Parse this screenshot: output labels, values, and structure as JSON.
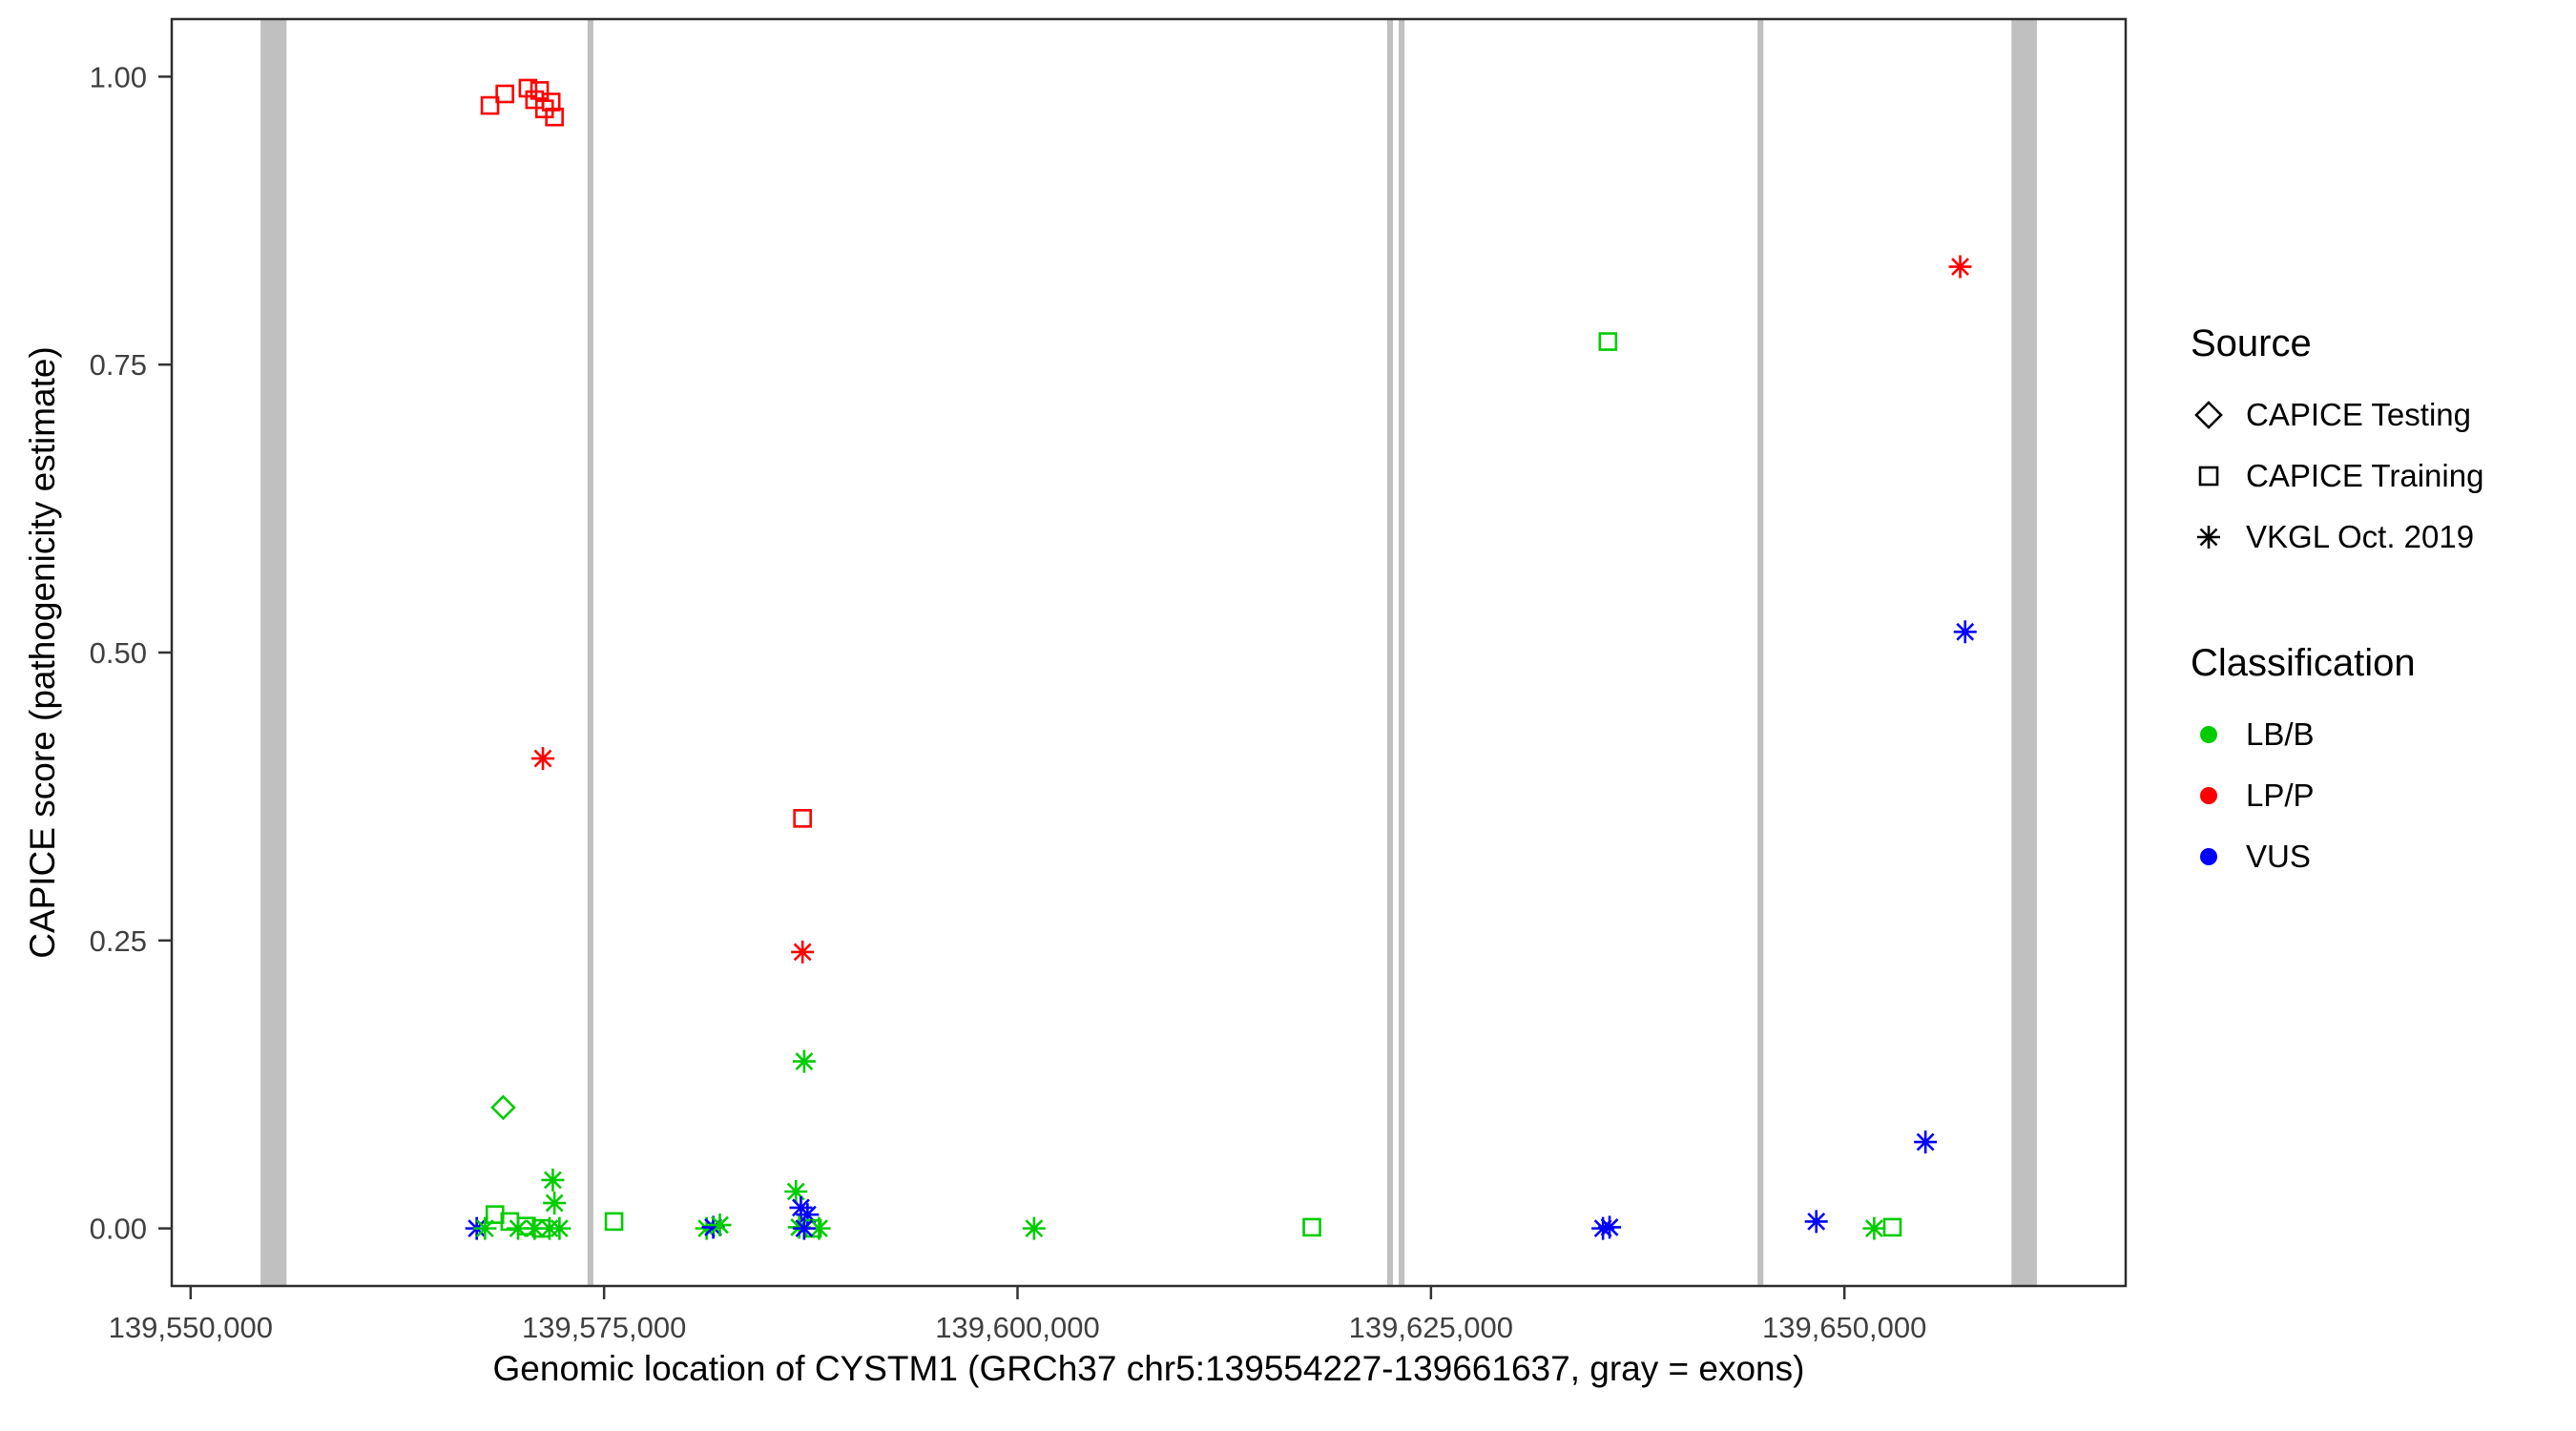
{
  "legend": {
    "source": {
      "title": "Source",
      "items": [
        {
          "label": "CAPICE Testing",
          "shape": "diamond"
        },
        {
          "label": "CAPICE Training",
          "shape": "square"
        },
        {
          "label": "VKGL Oct. 2019",
          "shape": "asterisk"
        }
      ]
    },
    "classification": {
      "title": "Classification",
      "items": [
        {
          "label": "LB/B",
          "color": "#00CC00"
        },
        {
          "label": "LP/P",
          "color": "#FF0000"
        },
        {
          "label": "VUS",
          "color": "#0000FF"
        }
      ]
    }
  },
  "chart_data": {
    "type": "scatter",
    "title": "",
    "xlabel": "Genomic location of CYSTM1 (GRCh37 chr5:139554227-139661637, gray = exons)",
    "ylabel": "CAPICE score (pathogenicity estimate)",
    "xlim": [
      139548857,
      139667007
    ],
    "ylim": [
      -0.05,
      1.05
    ],
    "grid": false,
    "legend_position": "right",
    "x_ticks": [
      {
        "value": 139550000,
        "label": "139,550,000"
      },
      {
        "value": 139575000,
        "label": "139,575,000"
      },
      {
        "value": 139600000,
        "label": "139,600,000"
      },
      {
        "value": 139625000,
        "label": "139,625,000"
      },
      {
        "value": 139650000,
        "label": "139,650,000"
      }
    ],
    "y_ticks": [
      {
        "value": 0.0,
        "label": "0.00"
      },
      {
        "value": 0.25,
        "label": "0.25"
      },
      {
        "value": 0.5,
        "label": "0.50"
      },
      {
        "value": 0.75,
        "label": "0.75"
      },
      {
        "value": 1.0,
        "label": "1.00"
      }
    ],
    "exon_color": "#C0C0C0",
    "exons": [
      {
        "start": 139554227,
        "end": 139555800
      },
      {
        "start": 139574000,
        "end": 139574350
      },
      {
        "start": 139622350,
        "end": 139622700
      },
      {
        "start": 139623050,
        "end": 139623400
      },
      {
        "start": 139644750,
        "end": 139645100
      },
      {
        "start": 139660100,
        "end": 139661637
      }
    ],
    "shape_map": {
      "CAPICE Testing": "diamond",
      "CAPICE Training": "square",
      "VKGL Oct. 2019": "asterisk"
    },
    "color_map": {
      "LB/B": "#00CC00",
      "LP/P": "#FF0000",
      "VUS": "#0000FF"
    },
    "points": [
      {
        "x": 139568100,
        "y": 0.975,
        "source": "CAPICE Training",
        "classification": "LP/P"
      },
      {
        "x": 139569000,
        "y": 0.985,
        "source": "CAPICE Training",
        "classification": "LP/P"
      },
      {
        "x": 139570400,
        "y": 0.99,
        "source": "CAPICE Training",
        "classification": "LP/P"
      },
      {
        "x": 139570800,
        "y": 0.98,
        "source": "CAPICE Training",
        "classification": "LP/P"
      },
      {
        "x": 139571100,
        "y": 0.988,
        "source": "CAPICE Training",
        "classification": "LP/P"
      },
      {
        "x": 139571400,
        "y": 0.972,
        "source": "CAPICE Training",
        "classification": "LP/P"
      },
      {
        "x": 139571800,
        "y": 0.978,
        "source": "CAPICE Training",
        "classification": "LP/P"
      },
      {
        "x": 139572000,
        "y": 0.965,
        "source": "CAPICE Training",
        "classification": "LP/P"
      },
      {
        "x": 139571300,
        "y": 0.408,
        "source": "VKGL Oct. 2019",
        "classification": "LP/P"
      },
      {
        "x": 139568900,
        "y": 0.105,
        "source": "CAPICE Testing",
        "classification": "LB/B"
      },
      {
        "x": 139587000,
        "y": 0.356,
        "source": "CAPICE Training",
        "classification": "LP/P"
      },
      {
        "x": 139587000,
        "y": 0.24,
        "source": "VKGL Oct. 2019",
        "classification": "LP/P"
      },
      {
        "x": 139587100,
        "y": 0.145,
        "source": "VKGL Oct. 2019",
        "classification": "LB/B"
      },
      {
        "x": 139635700,
        "y": 0.77,
        "source": "CAPICE Training",
        "classification": "LB/B"
      },
      {
        "x": 139657000,
        "y": 0.835,
        "source": "VKGL Oct. 2019",
        "classification": "LP/P"
      },
      {
        "x": 139657300,
        "y": 0.518,
        "source": "VKGL Oct. 2019",
        "classification": "VUS"
      },
      {
        "x": 139654900,
        "y": 0.075,
        "source": "VKGL Oct. 2019",
        "classification": "VUS"
      },
      {
        "x": 139567300,
        "y": 0.0,
        "source": "VKGL Oct. 2019",
        "classification": "VUS"
      },
      {
        "x": 139567800,
        "y": 0.0,
        "source": "VKGL Oct. 2019",
        "classification": "LB/B"
      },
      {
        "x": 139568400,
        "y": 0.012,
        "source": "CAPICE Training",
        "classification": "LB/B"
      },
      {
        "x": 139569300,
        "y": 0.006,
        "source": "CAPICE Training",
        "classification": "LB/B"
      },
      {
        "x": 139569800,
        "y": 0.0,
        "source": "VKGL Oct. 2019",
        "classification": "LB/B"
      },
      {
        "x": 139570300,
        "y": 0.002,
        "source": "CAPICE Training",
        "classification": "LB/B"
      },
      {
        "x": 139570800,
        "y": 0.0,
        "source": "VKGL Oct. 2019",
        "classification": "LB/B"
      },
      {
        "x": 139571200,
        "y": 0.0,
        "source": "CAPICE Training",
        "classification": "LB/B"
      },
      {
        "x": 139571900,
        "y": 0.042,
        "source": "VKGL Oct. 2019",
        "classification": "LB/B"
      },
      {
        "x": 139572000,
        "y": 0.022,
        "source": "VKGL Oct. 2019",
        "classification": "LB/B"
      },
      {
        "x": 139571700,
        "y": 0.0,
        "source": "VKGL Oct. 2019",
        "classification": "LB/B"
      },
      {
        "x": 139572300,
        "y": 0.0,
        "source": "VKGL Oct. 2019",
        "classification": "LB/B"
      },
      {
        "x": 139575600,
        "y": 0.006,
        "source": "CAPICE Training",
        "classification": "LB/B"
      },
      {
        "x": 139581200,
        "y": 0.0,
        "source": "VKGL Oct. 2019",
        "classification": "LB/B"
      },
      {
        "x": 139581600,
        "y": 0.001,
        "source": "VKGL Oct. 2019",
        "classification": "VUS"
      },
      {
        "x": 139582000,
        "y": 0.003,
        "source": "VKGL Oct. 2019",
        "classification": "LB/B"
      },
      {
        "x": 139586600,
        "y": 0.032,
        "source": "VKGL Oct. 2019",
        "classification": "LB/B"
      },
      {
        "x": 139586900,
        "y": 0.018,
        "source": "VKGL Oct. 2019",
        "classification": "VUS"
      },
      {
        "x": 139587300,
        "y": 0.012,
        "source": "VKGL Oct. 2019",
        "classification": "VUS"
      },
      {
        "x": 139586800,
        "y": 0.001,
        "source": "VKGL Oct. 2019",
        "classification": "LB/B"
      },
      {
        "x": 139587600,
        "y": 0.0,
        "source": "CAPICE Training",
        "classification": "LB/B"
      },
      {
        "x": 139588000,
        "y": 0.0,
        "source": "VKGL Oct. 2019",
        "classification": "LB/B"
      },
      {
        "x": 139587100,
        "y": 0.0,
        "source": "VKGL Oct. 2019",
        "classification": "VUS"
      },
      {
        "x": 139601000,
        "y": 0.0,
        "source": "VKGL Oct. 2019",
        "classification": "LB/B"
      },
      {
        "x": 139617800,
        "y": 0.001,
        "source": "CAPICE Training",
        "classification": "LB/B"
      },
      {
        "x": 139635400,
        "y": 0.0,
        "source": "VKGL Oct. 2019",
        "classification": "VUS"
      },
      {
        "x": 139635800,
        "y": 0.001,
        "source": "VKGL Oct. 2019",
        "classification": "VUS"
      },
      {
        "x": 139648300,
        "y": 0.006,
        "source": "VKGL Oct. 2019",
        "classification": "VUS"
      },
      {
        "x": 139651800,
        "y": 0.0,
        "source": "VKGL Oct. 2019",
        "classification": "LB/B"
      },
      {
        "x": 139652900,
        "y": 0.001,
        "source": "CAPICE Training",
        "classification": "LB/B"
      }
    ]
  }
}
